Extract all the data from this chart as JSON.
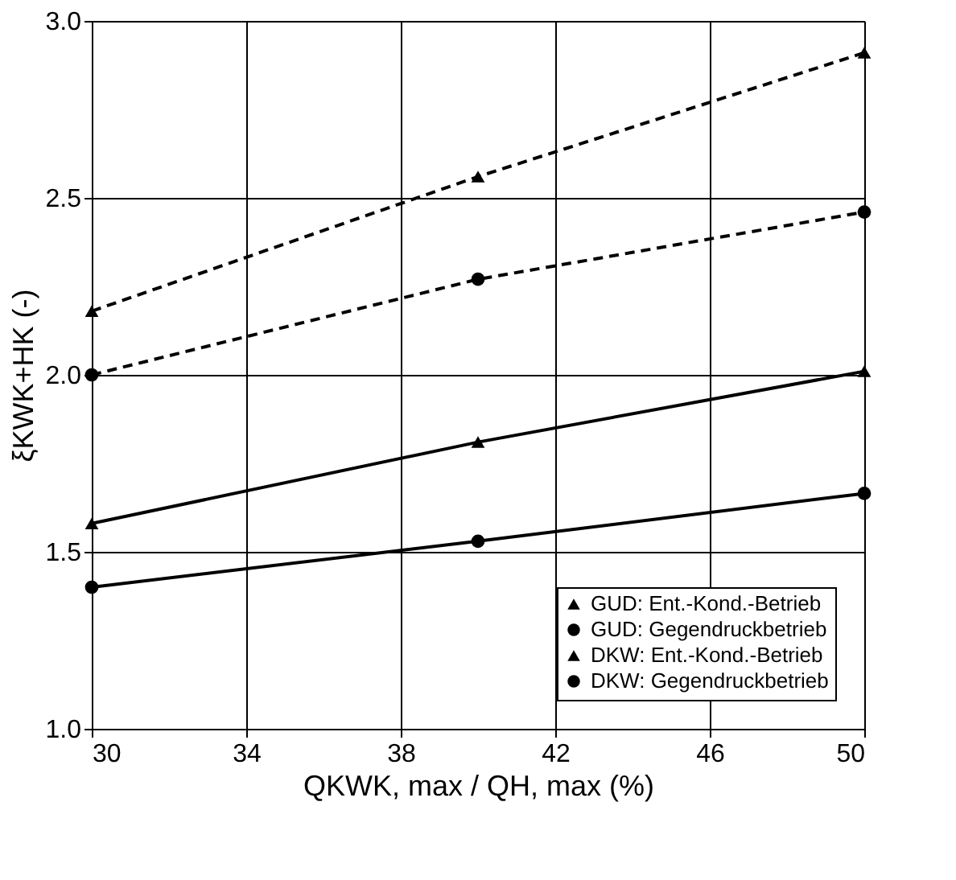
{
  "chart_data": {
    "type": "line",
    "xlabel": "QKWK, max / QH, max (%)",
    "ylabel": "ξKWK+HK (-)",
    "x": [
      30,
      40,
      50
    ],
    "xlim": [
      30,
      50
    ],
    "xticks": [
      30,
      34,
      38,
      42,
      46,
      50
    ],
    "ylim": [
      1.0,
      3.0
    ],
    "yticks": [
      {
        "value": 1.0,
        "label": "1.0"
      },
      {
        "value": 1.5,
        "label": "1.5"
      },
      {
        "value": 2.0,
        "label": "2.0"
      },
      {
        "value": 2.5,
        "label": "2.5"
      },
      {
        "value": 3.0,
        "label": "3.0"
      }
    ],
    "grid": true,
    "legend": "bottom right",
    "series": [
      {
        "name": "GUD: Ent.-Kond.-Betrieb",
        "color": "#000000",
        "values": [
          2.18,
          2.56,
          2.91
        ],
        "line_style": "dashed",
        "marker": "triangle"
      },
      {
        "name": "GUD: Gegendruckbetrieb",
        "color": "#000000",
        "values": [
          2.0,
          2.27,
          2.46
        ],
        "line_style": "dashed",
        "marker": "circle"
      },
      {
        "name": "DKW: Ent.-Kond.-Betrieb",
        "color": "#000000",
        "values": [
          1.58,
          1.81,
          2.01
        ],
        "line_style": "solid",
        "marker": "triangle"
      },
      {
        "name": "DKW: Gegendruckbetrieb",
        "color": "#000000",
        "values": [
          1.4,
          1.53,
          1.665
        ],
        "line_style": "solid",
        "marker": "circle"
      }
    ]
  }
}
